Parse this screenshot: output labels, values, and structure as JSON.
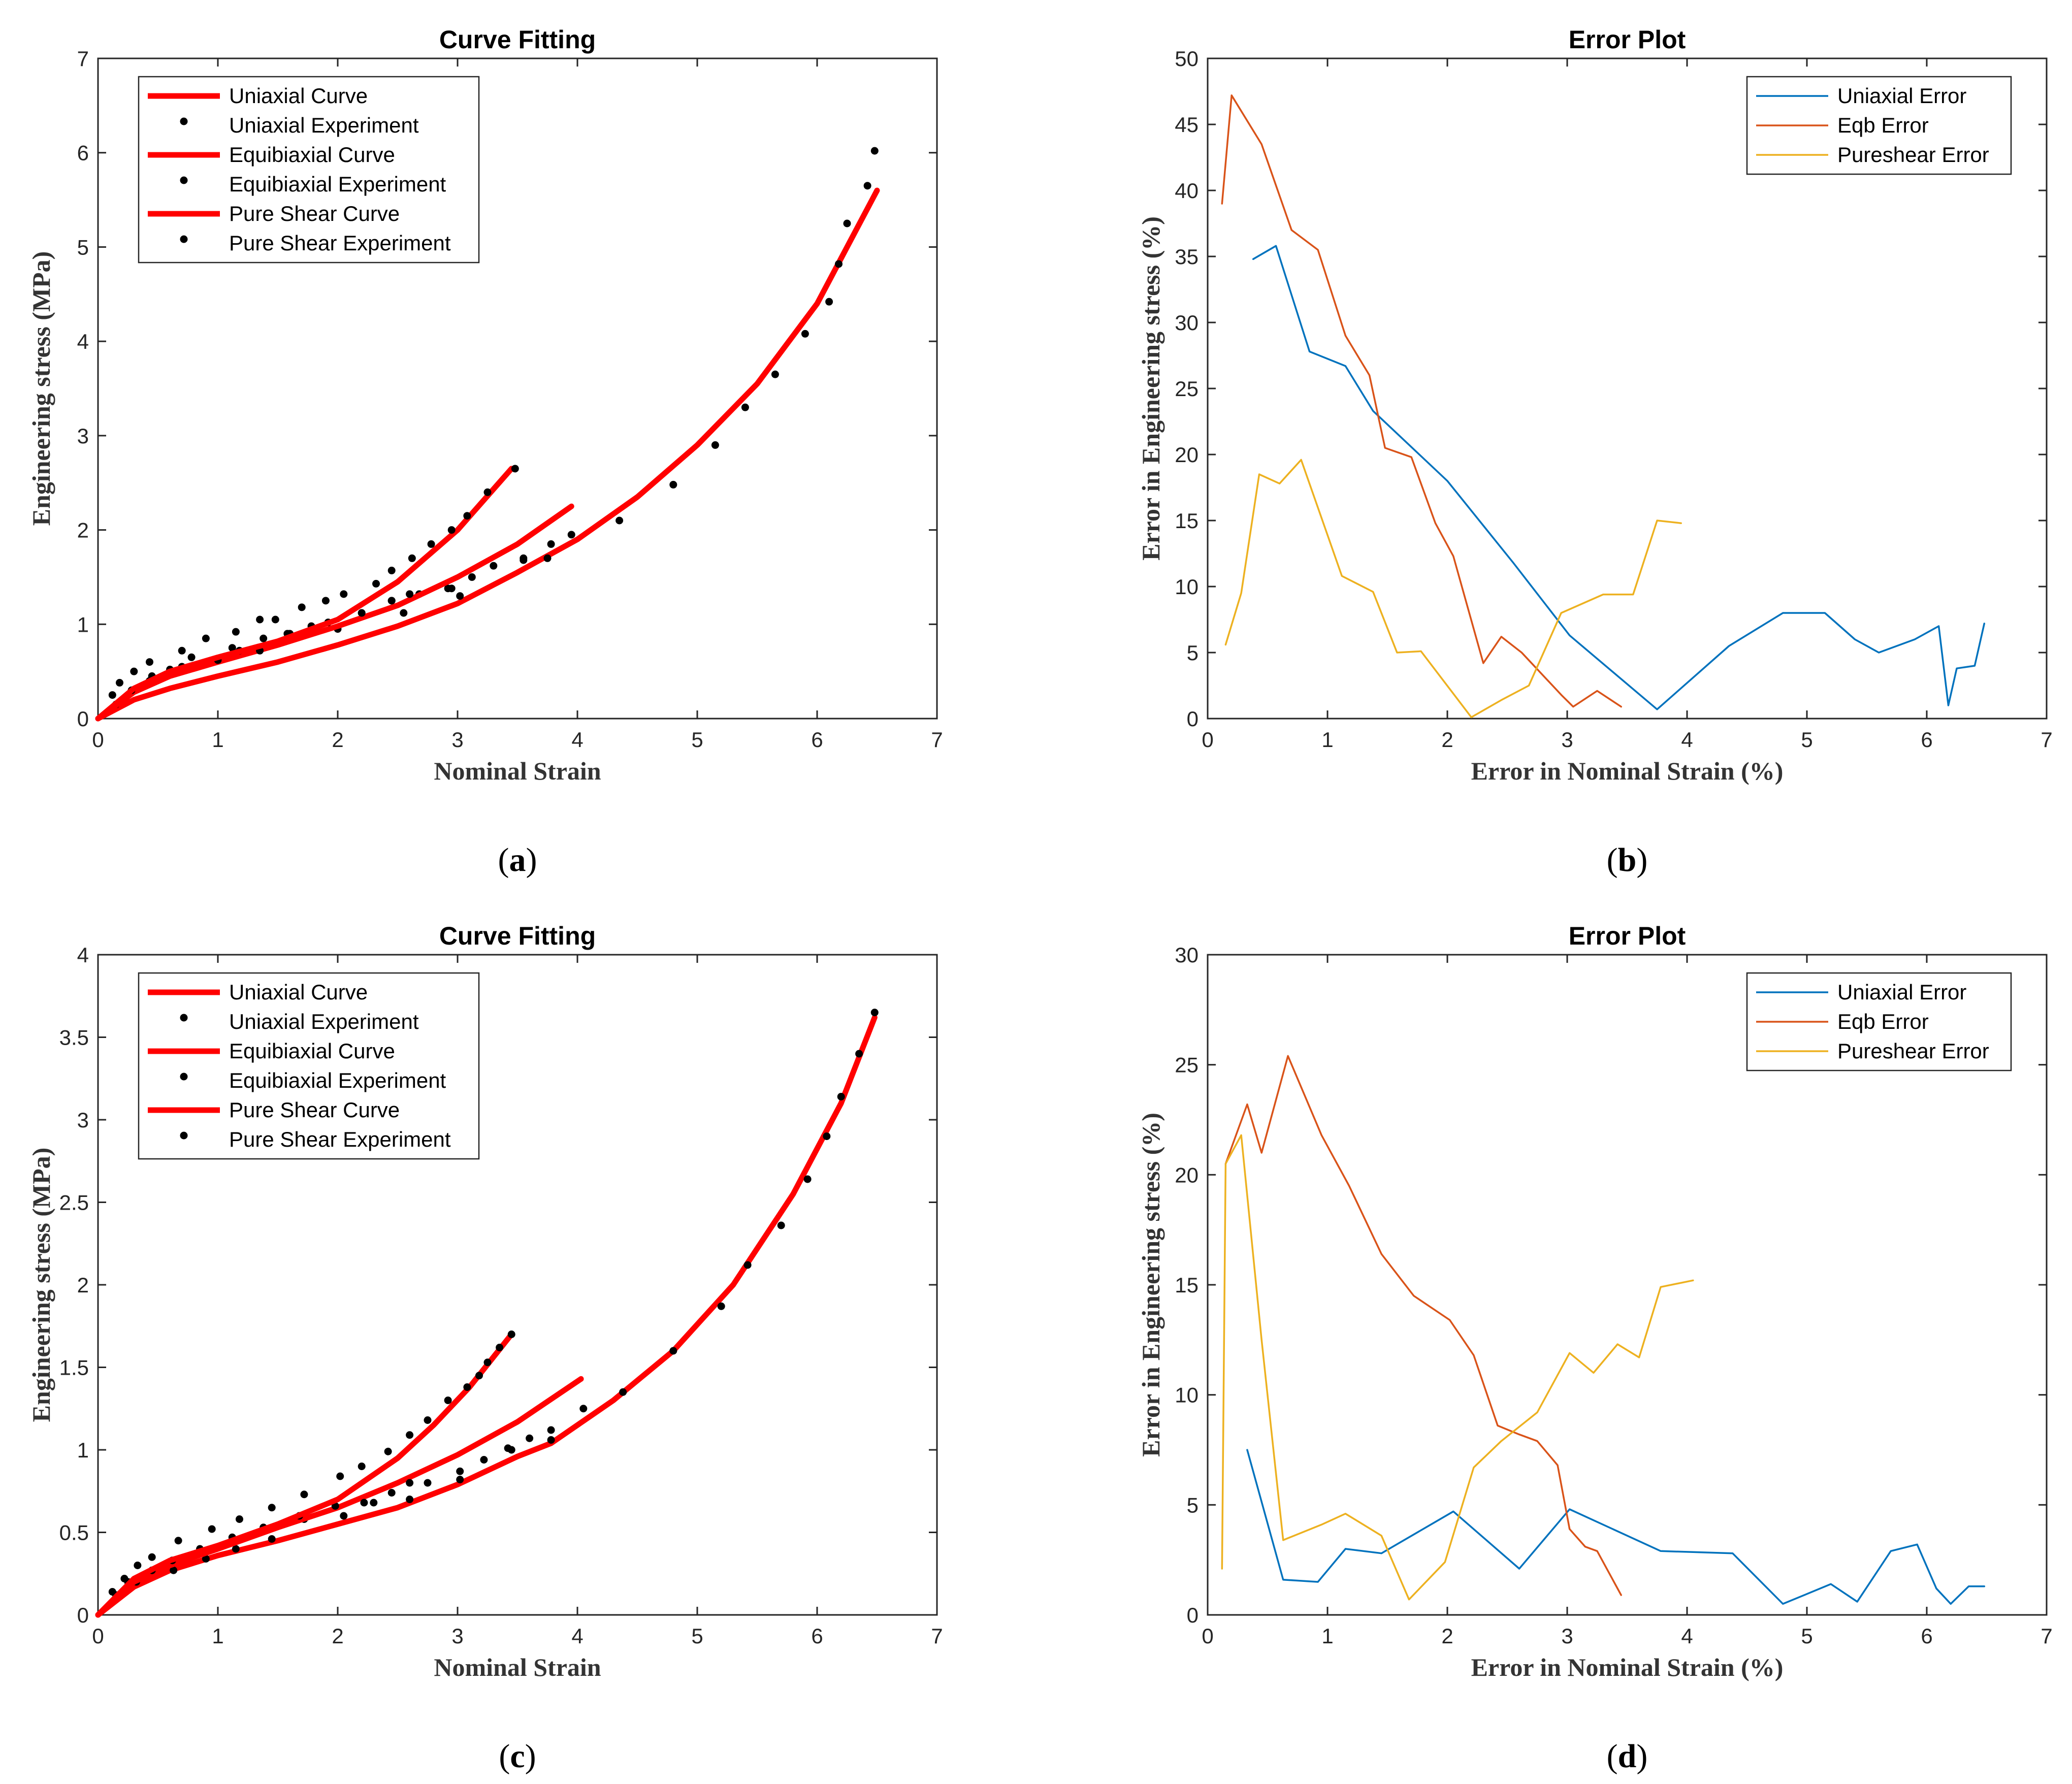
{
  "chart_data": [
    {
      "panel": "a",
      "label_open": "(",
      "label_letter": "a",
      "label_close": ")",
      "type": "line",
      "title": "Curve Fitting",
      "xlabel": "Nominal Strain",
      "ylabel": "Engineering stress (MPa)",
      "xlim": [
        0,
        7
      ],
      "ylim": [
        0,
        7
      ],
      "xticks": [
        "0",
        "1",
        "2",
        "3",
        "4",
        "5",
        "6",
        "7"
      ],
      "yticks": [
        "0",
        "1",
        "2",
        "3",
        "4",
        "5",
        "6",
        "7"
      ],
      "legend_position": "top-left",
      "series": [
        {
          "name": "Uniaxial Curve",
          "kind": "line",
          "color": "#FF0000",
          "x": [
            0,
            0.3,
            0.6,
            1.0,
            1.5,
            2.0,
            2.5,
            3.0,
            3.5,
            4.0,
            4.5,
            5.0,
            5.5,
            6.0,
            6.5
          ],
          "y": [
            0,
            0.2,
            0.32,
            0.45,
            0.6,
            0.78,
            0.98,
            1.22,
            1.55,
            1.9,
            2.35,
            2.9,
            3.55,
            4.4,
            5.6
          ]
        },
        {
          "name": "Uniaxial Experiment",
          "kind": "scatter",
          "color": "#000000",
          "x": [
            0.15,
            0.28,
            0.43,
            0.6,
            0.78,
            1.12,
            1.38,
            1.58,
            1.78,
            2.0,
            2.2,
            2.45,
            2.55,
            2.68,
            2.92,
            3.02,
            3.3,
            3.55,
            3.75,
            3.95,
            4.35,
            4.8,
            5.15,
            5.4,
            5.65,
            5.9,
            6.1,
            6.18,
            6.25,
            6.42,
            6.48
          ],
          "y": [
            0.15,
            0.28,
            0.4,
            0.52,
            0.65,
            0.75,
            0.85,
            0.9,
            0.98,
            0.95,
            1.12,
            1.25,
            1.12,
            1.32,
            1.38,
            1.3,
            1.62,
            1.7,
            1.7,
            1.95,
            2.1,
            2.48,
            2.9,
            3.3,
            3.65,
            4.08,
            4.42,
            4.82,
            5.25,
            5.65,
            6.02
          ]
        },
        {
          "name": "Equibiaxial Curve",
          "kind": "line",
          "color": "#FF0000",
          "x": [
            0,
            0.3,
            0.6,
            1.0,
            1.5,
            2.0,
            2.5,
            3.0,
            3.5,
            3.95
          ],
          "y": [
            0,
            0.28,
            0.45,
            0.6,
            0.78,
            0.98,
            1.2,
            1.5,
            1.85,
            2.25
          ]
        },
        {
          "name": "Equibiaxial Experiment",
          "kind": "scatter",
          "color": "#000000",
          "x": [
            0.12,
            0.28,
            0.45,
            0.7,
            1.0,
            1.18,
            1.35,
            1.6,
            1.92,
            2.2,
            2.45,
            2.6,
            2.95,
            3.12,
            3.55,
            3.78
          ],
          "y": [
            0.25,
            0.3,
            0.45,
            0.55,
            0.62,
            0.72,
            0.72,
            0.9,
            1.02,
            1.12,
            1.25,
            1.32,
            1.38,
            1.5,
            1.68,
            1.85
          ]
        },
        {
          "name": "Pure Shear Curve",
          "kind": "line",
          "color": "#FF0000",
          "x": [
            0,
            0.3,
            0.6,
            1.0,
            1.5,
            2.0,
            2.5,
            3.0,
            3.45
          ],
          "y": [
            0,
            0.32,
            0.5,
            0.65,
            0.82,
            1.05,
            1.45,
            2.0,
            2.65
          ]
        },
        {
          "name": "Pure Shear Experiment",
          "kind": "scatter",
          "color": "#000000",
          "x": [
            0.18,
            0.3,
            0.43,
            0.7,
            0.9,
            1.15,
            1.35,
            1.48,
            1.7,
            1.9,
            2.05,
            2.32,
            2.45,
            2.62,
            2.78,
            2.95,
            3.08,
            3.25,
            3.48
          ],
          "y": [
            0.38,
            0.5,
            0.6,
            0.72,
            0.85,
            0.92,
            1.05,
            1.05,
            1.18,
            1.25,
            1.32,
            1.43,
            1.57,
            1.7,
            1.85,
            2.0,
            2.15,
            2.4,
            2.65
          ]
        }
      ]
    },
    {
      "panel": "b",
      "label_open": "(",
      "label_letter": "b",
      "label_close": ")",
      "type": "line",
      "title": "Error Plot",
      "xlabel": "Error in Nominal Strain (%)",
      "ylabel": "Error in Engineering stress (%)",
      "xlim": [
        0,
        7
      ],
      "ylim": [
        0,
        50
      ],
      "xticks": [
        "0",
        "1",
        "2",
        "3",
        "4",
        "5",
        "6",
        "7"
      ],
      "yticks": [
        "0",
        "5",
        "10",
        "15",
        "20",
        "25",
        "30",
        "35",
        "40",
        "45",
        "50"
      ],
      "legend_position": "top-right",
      "series": [
        {
          "name": "Uniaxial Error",
          "kind": "line",
          "color": "#0072BD",
          "x": [
            0.38,
            0.57,
            0.85,
            1.15,
            1.38,
            2.0,
            2.55,
            3.02,
            3.75,
            4.35,
            4.8,
            5.15,
            5.4,
            5.6,
            5.9,
            6.1,
            6.18,
            6.25,
            6.4,
            6.48
          ],
          "y": [
            34.8,
            35.8,
            27.8,
            26.7,
            23.3,
            18.0,
            11.8,
            6.3,
            0.7,
            5.5,
            8.0,
            8.0,
            6.0,
            5.0,
            6.0,
            7.0,
            1.0,
            3.8,
            4.0,
            7.2
          ]
        },
        {
          "name": "Eqb Error",
          "kind": "line",
          "color": "#D95319",
          "x": [
            0.12,
            0.2,
            0.45,
            0.7,
            0.92,
            1.15,
            1.35,
            1.48,
            1.7,
            1.9,
            2.05,
            2.3,
            2.45,
            2.62,
            2.95,
            3.05,
            3.25,
            3.45
          ],
          "y": [
            39.0,
            47.2,
            43.5,
            37.0,
            35.5,
            29.0,
            26.0,
            20.5,
            19.8,
            14.8,
            12.3,
            4.2,
            6.2,
            5.0,
            1.8,
            0.9,
            2.1,
            0.9
          ]
        },
        {
          "name": "Pureshear Error",
          "kind": "line",
          "color": "#EDB120",
          "x": [
            0.15,
            0.28,
            0.43,
            0.6,
            0.78,
            1.12,
            1.38,
            1.58,
            1.78,
            2.2,
            2.45,
            2.68,
            2.95,
            3.3,
            3.55,
            3.75,
            3.95
          ],
          "y": [
            5.6,
            9.5,
            18.5,
            17.8,
            19.6,
            10.8,
            9.6,
            5.0,
            5.1,
            0.1,
            1.4,
            2.5,
            8.0,
            9.4,
            9.4,
            15.0,
            14.8
          ]
        }
      ]
    },
    {
      "panel": "c",
      "label_open": "(",
      "label_letter": "c",
      "label_close": ")",
      "type": "line",
      "title": "Curve Fitting",
      "xlabel": "Nominal Strain",
      "ylabel": "Engineering stress (MPa)",
      "xlim": [
        0,
        7
      ],
      "ylim": [
        0,
        4
      ],
      "xticks": [
        "0",
        "1",
        "2",
        "3",
        "4",
        "5",
        "6",
        "7"
      ],
      "yticks": [
        "0",
        "0.5",
        "1",
        "1.5",
        "2",
        "2.5",
        "3",
        "3.5",
        "4"
      ],
      "legend_position": "top-left",
      "series": [
        {
          "name": "Uniaxial Curve",
          "kind": "line",
          "color": "#FF0000",
          "x": [
            0,
            0.3,
            0.6,
            1.0,
            1.5,
            2.0,
            2.5,
            3.0,
            3.5,
            3.78,
            4.3,
            4.8,
            5.3,
            5.8,
            6.2,
            6.48
          ],
          "y": [
            0,
            0.17,
            0.27,
            0.36,
            0.45,
            0.55,
            0.65,
            0.79,
            0.96,
            1.04,
            1.3,
            1.6,
            2.0,
            2.55,
            3.1,
            3.62
          ]
        },
        {
          "name": "Uniaxial Experiment",
          "kind": "scatter",
          "color": "#000000",
          "x": [
            0.15,
            0.32,
            0.63,
            0.9,
            1.15,
            1.45,
            1.72,
            2.05,
            2.3,
            2.6,
            2.75,
            3.02,
            3.22,
            3.45,
            3.6,
            3.78,
            4.38,
            4.8,
            5.2,
            5.42,
            5.7,
            5.92,
            6.08,
            6.2,
            6.35,
            6.48
          ],
          "y": [
            0.12,
            0.2,
            0.27,
            0.34,
            0.4,
            0.46,
            0.58,
            0.6,
            0.68,
            0.7,
            0.8,
            0.82,
            0.94,
            1.0,
            1.07,
            1.06,
            1.35,
            1.6,
            1.87,
            2.12,
            2.36,
            2.64,
            2.9,
            3.14,
            3.4,
            3.65
          ]
        },
        {
          "name": "Equibiaxial Curve",
          "kind": "line",
          "color": "#FF0000",
          "x": [
            0,
            0.3,
            0.6,
            1.0,
            1.5,
            2.0,
            2.5,
            3.0,
            3.5,
            4.03
          ],
          "y": [
            0,
            0.2,
            0.3,
            0.4,
            0.53,
            0.65,
            0.8,
            0.97,
            1.17,
            1.43
          ]
        },
        {
          "name": "Equibiaxial Experiment",
          "kind": "scatter",
          "color": "#000000",
          "x": [
            0.12,
            0.25,
            0.45,
            0.62,
            0.85,
            1.12,
            1.38,
            1.68,
            1.98,
            2.22,
            2.45,
            2.6,
            3.02,
            3.42,
            3.78,
            4.05
          ],
          "y": [
            0.14,
            0.2,
            0.27,
            0.33,
            0.4,
            0.47,
            0.53,
            0.6,
            0.66,
            0.68,
            0.74,
            0.8,
            0.87,
            1.01,
            1.12,
            1.25
          ]
        },
        {
          "name": "Pure Shear Curve",
          "kind": "line",
          "color": "#FF0000",
          "x": [
            0,
            0.3,
            0.6,
            1.0,
            1.5,
            2.0,
            2.5,
            2.8,
            3.1,
            3.45
          ],
          "y": [
            0,
            0.22,
            0.33,
            0.42,
            0.55,
            0.7,
            0.95,
            1.15,
            1.38,
            1.7
          ]
        },
        {
          "name": "Pure Shear Experiment",
          "kind": "scatter",
          "color": "#000000",
          "x": [
            0.22,
            0.33,
            0.45,
            0.67,
            0.95,
            1.18,
            1.45,
            1.72,
            2.02,
            2.2,
            2.42,
            2.6,
            2.75,
            2.92,
            3.08,
            3.18,
            3.25,
            3.35,
            3.45
          ],
          "y": [
            0.22,
            0.3,
            0.35,
            0.45,
            0.52,
            0.58,
            0.65,
            0.73,
            0.84,
            0.9,
            0.99,
            1.09,
            1.18,
            1.3,
            1.38,
            1.45,
            1.53,
            1.62,
            1.7
          ]
        }
      ]
    },
    {
      "panel": "d",
      "label_open": "(",
      "label_letter": "d",
      "label_close": ")",
      "type": "line",
      "title": "Error Plot",
      "xlabel": "Error in Nominal Strain (%)",
      "ylabel": "Error in Engineering stress (%)",
      "xlim": [
        0,
        7
      ],
      "ylim": [
        0,
        30
      ],
      "xticks": [
        "0",
        "1",
        "2",
        "3",
        "4",
        "5",
        "6",
        "7"
      ],
      "yticks": [
        "0",
        "5",
        "10",
        "15",
        "20",
        "25",
        "30"
      ],
      "legend_position": "top-right",
      "series": [
        {
          "name": "Uniaxial Error",
          "kind": "line",
          "color": "#0072BD",
          "x": [
            0.33,
            0.63,
            0.92,
            1.15,
            1.45,
            2.05,
            2.6,
            3.02,
            3.78,
            4.38,
            4.8,
            5.2,
            5.42,
            5.7,
            5.92,
            6.08,
            6.2,
            6.35,
            6.48
          ],
          "y": [
            7.5,
            1.6,
            1.5,
            3.0,
            2.8,
            4.7,
            2.1,
            4.8,
            2.9,
            2.8,
            0.5,
            1.4,
            0.6,
            2.9,
            3.2,
            1.2,
            0.5,
            1.3,
            1.3
          ]
        },
        {
          "name": "Eqb Error",
          "kind": "line",
          "color": "#D95319",
          "x": [
            0.15,
            0.25,
            0.33,
            0.45,
            0.67,
            0.95,
            1.18,
            1.45,
            1.72,
            2.02,
            2.22,
            2.42,
            2.6,
            2.75,
            2.92,
            3.02,
            3.15,
            3.25,
            3.45
          ],
          "y": [
            20.5,
            22.0,
            23.2,
            21.0,
            25.4,
            21.8,
            19.5,
            16.4,
            14.5,
            13.4,
            11.8,
            8.6,
            8.2,
            7.9,
            6.8,
            3.9,
            3.1,
            2.9,
            0.9
          ]
        },
        {
          "name": "Pureshear Error",
          "kind": "line",
          "color": "#EDB120",
          "x": [
            0.12,
            0.15,
            0.28,
            0.45,
            0.63,
            0.95,
            1.15,
            1.45,
            1.68,
            1.98,
            2.22,
            2.45,
            2.75,
            3.02,
            3.22,
            3.42,
            3.6,
            3.78,
            4.05
          ],
          "y": [
            2.1,
            20.5,
            21.8,
            12.5,
            3.4,
            4.1,
            4.6,
            3.6,
            0.7,
            2.4,
            6.7,
            7.9,
            9.2,
            11.9,
            11.0,
            12.3,
            11.7,
            14.9,
            15.2
          ]
        }
      ]
    }
  ]
}
